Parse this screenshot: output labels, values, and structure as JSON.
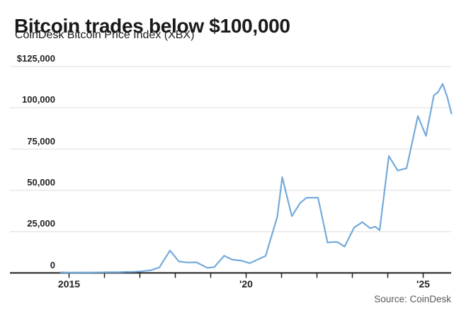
{
  "header": {
    "title": "Bitcoin trades below $100,000",
    "subtitle": "CoinDesk Bitcoin Price Index (XBX)"
  },
  "footer": {
    "source": "Source: CoinDesk"
  },
  "colors": {
    "line": "#74aadb",
    "grid": "#dedede",
    "axis": "#1f1f1f",
    "title_text": "#1a1a1a",
    "tick_text": "#222222",
    "source_text": "#595959",
    "background": "#ffffff"
  },
  "chart_data": {
    "type": "line",
    "title": "Bitcoin trades below $100,000",
    "subtitle": "CoinDesk Bitcoin Price Index (XBX)",
    "xlabel": "",
    "ylabel": "",
    "xlim": [
      2014.75,
      2025.8
    ],
    "ylim": [
      0,
      125000
    ],
    "grid": "horizontal",
    "legend_position": "none",
    "y_ticks": [
      {
        "v": 0,
        "label": "0"
      },
      {
        "v": 25000,
        "label": "25,000"
      },
      {
        "v": 50000,
        "label": "50,000"
      },
      {
        "v": 75000,
        "label": "75,000"
      },
      {
        "v": 100000,
        "label": "100,000"
      },
      {
        "v": 125000,
        "label": "$125,000"
      }
    ],
    "x_ticks": [
      {
        "t": 2015,
        "label": "2015"
      },
      {
        "t": 2016,
        "label": ""
      },
      {
        "t": 2017,
        "label": ""
      },
      {
        "t": 2018,
        "label": ""
      },
      {
        "t": 2019,
        "label": ""
      },
      {
        "t": 2020,
        "label": "'20"
      },
      {
        "t": 2021,
        "label": ""
      },
      {
        "t": 2022,
        "label": ""
      },
      {
        "t": 2023,
        "label": ""
      },
      {
        "t": 2024,
        "label": ""
      },
      {
        "t": 2025,
        "label": "'25"
      }
    ],
    "series": [
      {
        "name": "CoinDesk Bitcoin Price Index (XBX)",
        "points": [
          [
            2014.75,
            370
          ],
          [
            2015.0,
            230
          ],
          [
            2015.3,
            250
          ],
          [
            2015.6,
            270
          ],
          [
            2015.9,
            350
          ],
          [
            2016.1,
            420
          ],
          [
            2016.4,
            450
          ],
          [
            2016.6,
            640
          ],
          [
            2016.85,
            720
          ],
          [
            2017.05,
            990
          ],
          [
            2017.3,
            1600
          ],
          [
            2017.55,
            3300
          ],
          [
            2017.85,
            13600
          ],
          [
            2018.1,
            6950
          ],
          [
            2018.35,
            6300
          ],
          [
            2018.6,
            6450
          ],
          [
            2018.9,
            3100
          ],
          [
            2019.1,
            3500
          ],
          [
            2019.38,
            10400
          ],
          [
            2019.6,
            8100
          ],
          [
            2019.85,
            7450
          ],
          [
            2020.1,
            5900
          ],
          [
            2020.35,
            8300
          ],
          [
            2020.55,
            10300
          ],
          [
            2020.88,
            34000
          ],
          [
            2021.02,
            58000
          ],
          [
            2021.29,
            34400
          ],
          [
            2021.52,
            42200
          ],
          [
            2021.7,
            45500
          ],
          [
            2022.03,
            45600
          ],
          [
            2022.3,
            18400
          ],
          [
            2022.5,
            18800
          ],
          [
            2022.6,
            18500
          ],
          [
            2022.78,
            15900
          ],
          [
            2023.05,
            27500
          ],
          [
            2023.28,
            30800
          ],
          [
            2023.5,
            27100
          ],
          [
            2023.65,
            28000
          ],
          [
            2023.77,
            25800
          ],
          [
            2024.03,
            70800
          ],
          [
            2024.28,
            62000
          ],
          [
            2024.53,
            63400
          ],
          [
            2024.85,
            95000
          ],
          [
            2025.08,
            83000
          ],
          [
            2025.3,
            107500
          ],
          [
            2025.42,
            109500
          ],
          [
            2025.55,
            114500
          ],
          [
            2025.68,
            106500
          ],
          [
            2025.8,
            96500
          ]
        ]
      }
    ]
  }
}
